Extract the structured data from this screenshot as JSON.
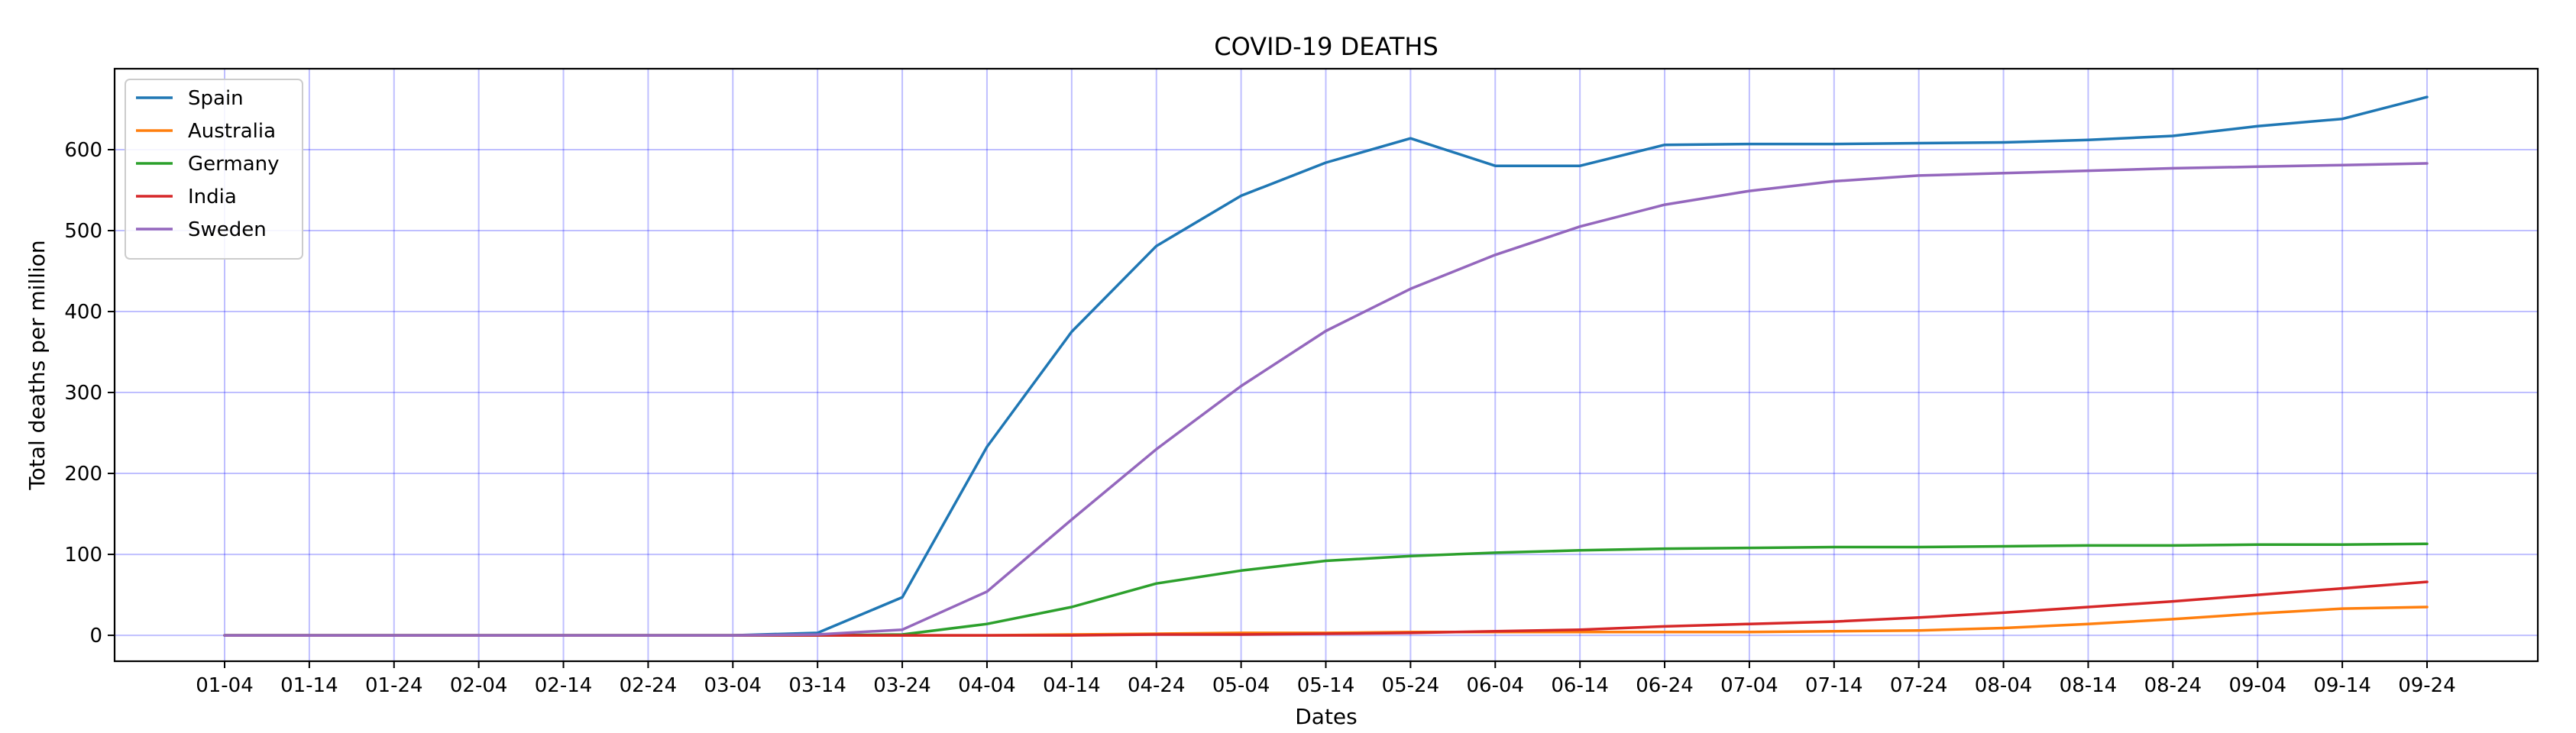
{
  "chart_data": {
    "type": "line",
    "title": "COVID-19 DEATHS",
    "xlabel": "Dates",
    "ylabel": "Total deaths per million",
    "ylim": [
      -32,
      700
    ],
    "yticks": [
      0,
      100,
      200,
      300,
      400,
      500,
      600
    ],
    "grid": true,
    "grid_color": "#0000ff",
    "legend_position": "upper-left",
    "categories": [
      "01-04",
      "01-14",
      "01-24",
      "02-04",
      "02-14",
      "02-24",
      "03-04",
      "03-14",
      "03-24",
      "04-04",
      "04-14",
      "04-24",
      "05-04",
      "05-14",
      "05-24",
      "06-04",
      "06-14",
      "06-24",
      "07-04",
      "07-14",
      "07-24",
      "08-04",
      "08-14",
      "08-24",
      "09-04",
      "09-14",
      "09-24"
    ],
    "series": [
      {
        "name": "Spain",
        "color": "#1f77b4",
        "values": [
          0,
          0,
          0,
          0,
          0,
          0,
          0,
          3,
          47,
          233,
          375,
          481,
          543,
          584,
          614,
          580,
          580,
          606,
          607,
          607,
          608,
          609,
          612,
          617,
          629,
          638,
          665
        ]
      },
      {
        "name": "Australia",
        "color": "#ff7f0e",
        "values": [
          0,
          0,
          0,
          0,
          0,
          0,
          0,
          0,
          0,
          0,
          1,
          2,
          3,
          3,
          4,
          4,
          4,
          4,
          4,
          5,
          6,
          9,
          14,
          20,
          27,
          33,
          35
        ]
      },
      {
        "name": "Germany",
        "color": "#2ca02c",
        "values": [
          0,
          0,
          0,
          0,
          0,
          0,
          0,
          0,
          1,
          14,
          35,
          64,
          80,
          92,
          98,
          102,
          105,
          107,
          108,
          109,
          109,
          110,
          111,
          111,
          112,
          112,
          113
        ]
      },
      {
        "name": "India",
        "color": "#d62728",
        "values": [
          0,
          0,
          0,
          0,
          0,
          0,
          0,
          0,
          0,
          0,
          0,
          1,
          1,
          2,
          3,
          5,
          7,
          11,
          14,
          17,
          22,
          28,
          35,
          42,
          50,
          58,
          66
        ]
      },
      {
        "name": "Sweden",
        "color": "#9467bd",
        "values": [
          0,
          0,
          0,
          0,
          0,
          0,
          0,
          1,
          7,
          54,
          143,
          230,
          308,
          376,
          428,
          470,
          505,
          532,
          549,
          561,
          568,
          571,
          574,
          577,
          579,
          581,
          583
        ]
      }
    ]
  }
}
